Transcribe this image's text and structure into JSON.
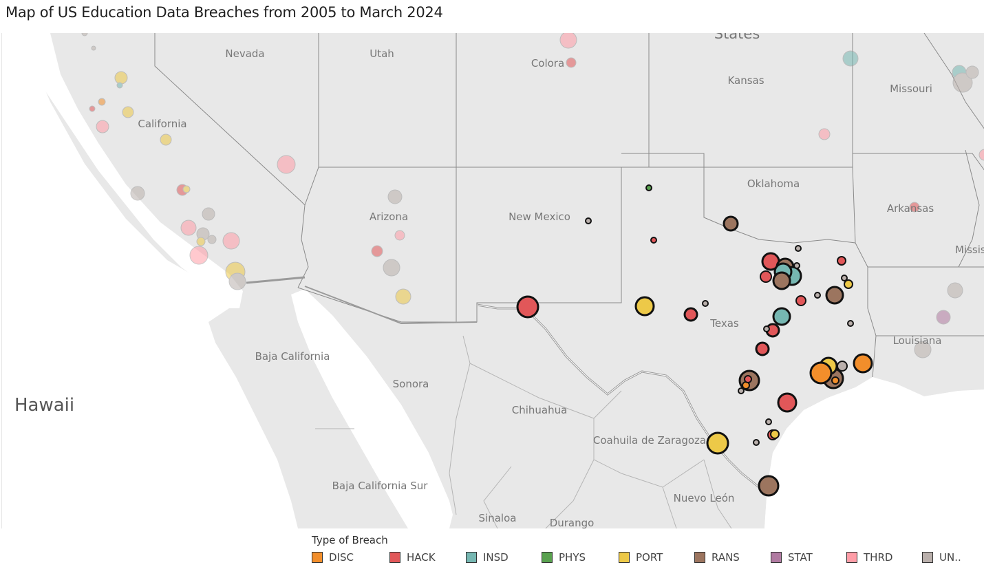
{
  "title": "Map of US Education Data Breaches from 2005 to March 2024",
  "map": {
    "hawaii_label": "Hawaii",
    "state_labels": [
      "Nevada",
      "Utah",
      "Colora",
      "States",
      "Kansas",
      "Missouri",
      "California",
      "Oklahoma",
      "Arkansas",
      "Missis",
      "Arizona",
      "New Mexico",
      "Texas",
      "Louisiana"
    ],
    "region_labels": [
      "Baja California",
      "Sonora",
      "Chihuahua",
      "Coahuila de Zaragoza",
      "Baja California Sur",
      "Nuevo León",
      "Sinaloa",
      "Durango"
    ],
    "breaches": [
      {
        "type": "PHYS",
        "size": 4
      },
      {
        "type": "UNKN",
        "size": 4
      },
      {
        "type": "HACK",
        "size": 4
      },
      {
        "type": "RANS",
        "size": 10
      },
      {
        "type": "UNKN",
        "size": 4
      },
      {
        "type": "HACK",
        "size": 12
      },
      {
        "type": "HACK",
        "size": 4
      },
      {
        "type": "RANS",
        "size": 12
      },
      {
        "type": "INSD",
        "size": 13
      },
      {
        "type": "INSD",
        "size": 12
      },
      {
        "type": "RANS",
        "size": 12
      },
      {
        "type": "HACK",
        "size": 8
      },
      {
        "type": "UNKN",
        "size": 4
      },
      {
        "type": "HACK",
        "size": 6
      },
      {
        "type": "UNKN",
        "size": 4
      },
      {
        "type": "PORT",
        "size": 6
      },
      {
        "type": "UNKN",
        "size": 4
      },
      {
        "type": "RANS",
        "size": 12
      },
      {
        "type": "HACK",
        "size": 15
      },
      {
        "type": "PORT",
        "size": 13
      },
      {
        "type": "HACK",
        "size": 9
      },
      {
        "type": "UNKN",
        "size": 4
      },
      {
        "type": "INSD",
        "size": 12
      },
      {
        "type": "HACK",
        "size": 7
      },
      {
        "type": "HACK",
        "size": 9
      },
      {
        "type": "RANS",
        "size": 14
      },
      {
        "type": "HACK",
        "size": 6
      },
      {
        "type": "UNKN",
        "size": 4
      },
      {
        "type": "HACK",
        "size": 13
      },
      {
        "type": "UNKN",
        "size": 4
      },
      {
        "type": "HACK",
        "size": 9
      },
      {
        "type": "ORANGE_SMALL",
        "size": 5
      },
      {
        "type": "HACK",
        "size": 5
      },
      {
        "type": "PORT",
        "size": 15
      },
      {
        "type": "UNKN",
        "size": 4
      },
      {
        "type": "RANS",
        "size": 14
      },
      {
        "type": "DISC",
        "size": 5
      },
      {
        "type": "UNKN",
        "size": 4
      },
      {
        "type": "PORT",
        "size": 12
      },
      {
        "type": "DISC",
        "size": 15
      },
      {
        "type": "RANS",
        "size": 14
      },
      {
        "type": "UNKN",
        "size": 7
      },
      {
        "type": "DISC",
        "size": 13
      },
      {
        "type": "HACK",
        "size": 7
      },
      {
        "type": "PORT",
        "size": 6
      },
      {
        "type": "UNKN",
        "size": 4
      }
    ]
  },
  "legend": {
    "title": "Type of Breach",
    "items": [
      {
        "label": "DISC",
        "color": "#f28e2b"
      },
      {
        "label": "HACK",
        "color": "#e15759"
      },
      {
        "label": "INSD",
        "color": "#76b7b2"
      },
      {
        "label": "PHYS",
        "color": "#59a14f"
      },
      {
        "label": "PORT",
        "color": "#edc948"
      },
      {
        "label": "RANS",
        "color": "#9c755f"
      },
      {
        "label": "STAT",
        "color": "#b07aa1"
      },
      {
        "label": "THRD",
        "color": "#ff9da7"
      },
      {
        "label": "UN..",
        "color": "#bab0ac"
      }
    ]
  }
}
